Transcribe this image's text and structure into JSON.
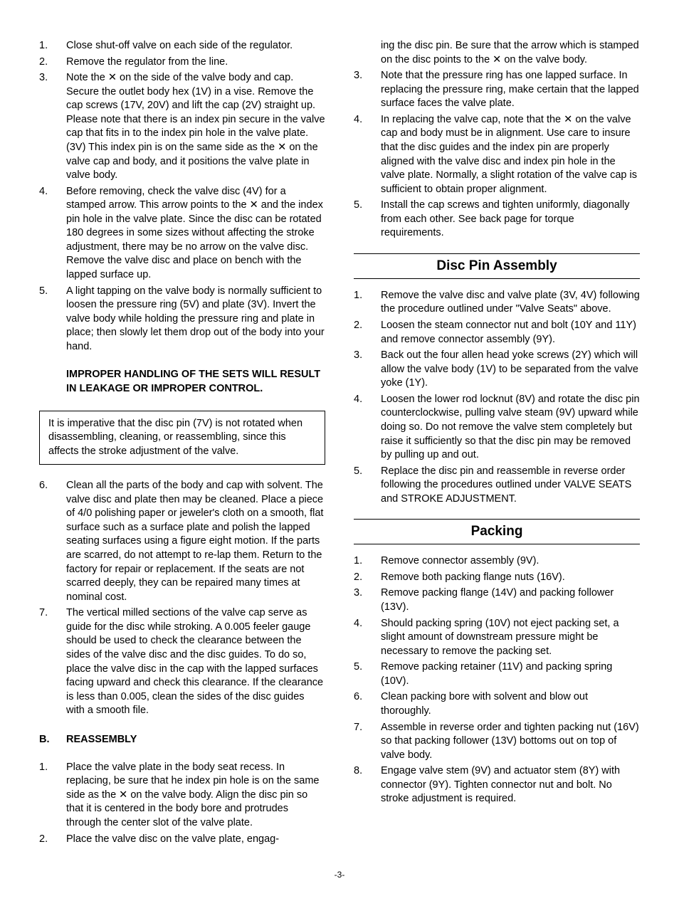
{
  "page_number": "-3-",
  "x_symbol": "✕",
  "left_column": {
    "items_a": [
      {
        "num": "1.",
        "text": "Close shut-off valve on each side of the regulator."
      },
      {
        "num": "2.",
        "text": "Remove the regulator from the line."
      },
      {
        "num": "3.",
        "text": "Note the ✕ on the side of the valve body and cap. Secure the outlet body hex (1V) in a vise. Remove the cap screws (17V, 20V) and lift the cap (2V) straight up. Please note that there is an index pin secure in the valve cap that fits in to the index pin hole in the valve plate. (3V) This index pin is on the same side as the ✕ on the valve cap and body, and it positions the valve plate in valve body."
      },
      {
        "num": "4.",
        "text": "Before removing, check the valve disc (4V) for a stamped arrow. This arrow points to the ✕ and the index pin hole in the valve plate. Since the disc can be rotated 180 degrees in some sizes without affecting the stroke adjustment, there may be no arrow on the valve disc. Remove the valve disc and place on bench with the lapped surface up."
      },
      {
        "num": "5.",
        "text": "A light tapping on the valve body is normally sufficient to loosen the pressure ring (5V) and plate (3V). Invert the valve body while holding the pressure ring and plate in place; then slowly let them drop out of the body into your hand."
      }
    ],
    "warning": "IMPROPER HANDLING OF THE SETS WILL RESULT IN LEAKAGE OR IMPROPER CONTROL.",
    "box_text": "It is imperative that the disc pin (7V) is not rotated when disassembling, cleaning, or reassembling, since this affects the stroke adjustment of the valve.",
    "items_b": [
      {
        "num": "6.",
        "text": "Clean all the parts of the body and cap with solvent. The valve disc and plate then may be cleaned. Place a piece of 4/0 polishing paper or jeweler's cloth on a smooth, flat surface such as a surface plate and polish the lapped seating surfaces using a figure eight motion. If the parts are scarred, do not attempt to re-lap them. Return to the factory for repair or replacement. If the seats are not scarred deeply, they can be repaired many times at nominal cost."
      },
      {
        "num": "7.",
        "text": "The vertical milled sections of the valve cap serve as guide for the disc while stroking. A 0.005 feeler gauge should be used to check the clearance between the sides of the valve disc and the disc guides. To do so, place the valve disc in the cap with the lapped surfaces facing upward and check this clearance. If the clearance is less than 0.005, clean the sides of the disc guides with a smooth file."
      }
    ],
    "reassembly": {
      "letter": "B.",
      "heading": "REASSEMBLY"
    },
    "items_c": [
      {
        "num": "1.",
        "text": "Place the valve plate in the body seat recess. In replacing, be sure that he index pin hole is on the same side as the ✕ on the valve body. Align the disc pin so that it is centered in the body bore and protrudes through the center slot of the valve plate."
      },
      {
        "num": "2.",
        "text": "Place the valve disc on the valve plate, engag-"
      }
    ]
  },
  "right_column": {
    "continuation": "ing the disc pin.  Be sure that the arrow which is stamped on the disc points to the ✕ on the valve body.",
    "items_a": [
      {
        "num": "3.",
        "text": "Note that the pressure ring has one lapped surface. In replacing the pressure ring, make certain that the lapped surface faces the valve plate."
      },
      {
        "num": "4.",
        "text": "In replacing the valve cap, note that the ✕ on the valve cap and body must be in alignment. Use care to insure that the disc guides and the index pin are properly aligned with the valve disc and index pin hole in the valve plate. Normally, a slight rotation of the valve cap is sufficient to obtain proper alignment."
      },
      {
        "num": "5.",
        "text": "Install the cap screws and tighten uniformly, diagonally from each other. See back page for torque requirements."
      }
    ],
    "section_disc": "Disc Pin Assembly",
    "items_b": [
      {
        "num": "1.",
        "text": "Remove the valve disc and valve plate (3V, 4V) following the procedure outlined under \"Valve Seats\" above."
      },
      {
        "num": "2.",
        "text": "Loosen the steam connector nut and bolt (10Y and 11Y) and remove connector assembly (9Y)."
      },
      {
        "num": "3.",
        "text": "Back out the four allen head yoke screws (2Y) which will allow the valve body (1V) to be separated from the valve yoke (1Y)."
      },
      {
        "num": "4.",
        "text": "Loosen the lower rod locknut (8V) and rotate the disc pin counterclockwise, pulling valve steam (9V) upward while doing so. Do not remove the valve stem completely but raise it sufficiently so that the disc pin may be removed by pulling up and out."
      },
      {
        "num": "5.",
        "text": "Replace the disc pin and reassemble in reverse order following the procedures outlined under VALVE SEATS and STROKE ADJUSTMENT."
      }
    ],
    "section_packing": "Packing",
    "items_c": [
      {
        "num": "1.",
        "text": "Remove connector assembly (9V)."
      },
      {
        "num": "2.",
        "text": "Remove both packing flange nuts (16V)."
      },
      {
        "num": "3.",
        "text": "Remove packing flange (14V) and packing follower (13V)."
      },
      {
        "num": "4.",
        "text": "Should packing spring (10V) not eject packing set, a slight amount of downstream pressure might be necessary to remove the packing set."
      },
      {
        "num": "5.",
        "text": "Remove packing retainer (11V) and packing spring (10V)."
      },
      {
        "num": "6.",
        "text": "Clean packing bore with solvent and blow out thoroughly."
      },
      {
        "num": "7.",
        "text": "Assemble in reverse order and tighten packing nut (16V) so that packing follower (13V) bottoms out on top of valve body."
      },
      {
        "num": "8.",
        "text": "Engage valve stem (9V) and actuator stem (8Y) with connector (9Y). Tighten connector nut and bolt. No stroke adjustment is required."
      }
    ]
  }
}
